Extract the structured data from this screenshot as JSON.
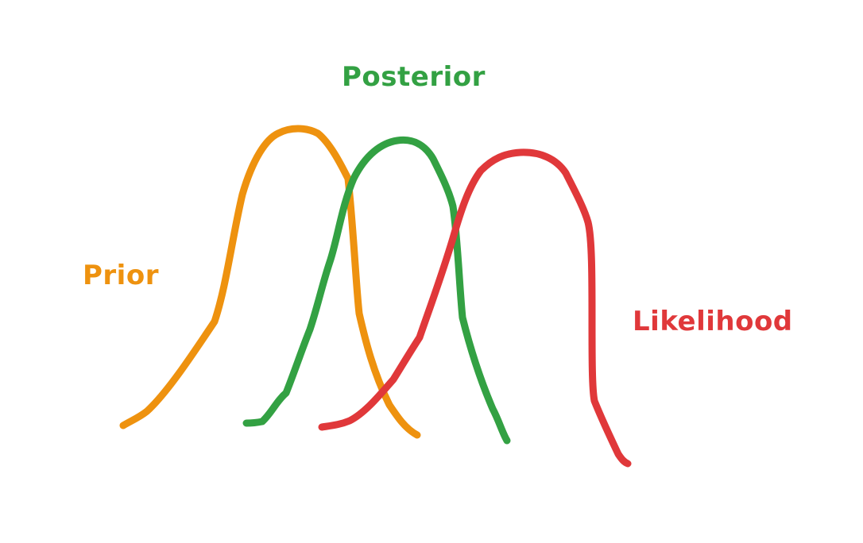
{
  "colors": {
    "prior": "#ee920f",
    "posterior": "#33a143",
    "likelihood": "#e0383a",
    "background": "#ffffff"
  },
  "labels": {
    "prior": "Prior",
    "posterior": "Posterior",
    "likelihood": "Likelihood"
  }
}
